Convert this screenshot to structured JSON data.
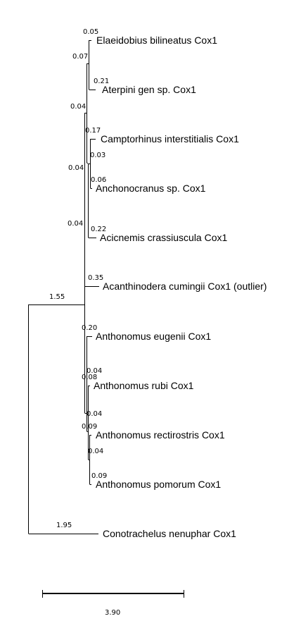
{
  "tree": {
    "taxa": [
      "Elaeidobius bilineatus Cox1",
      "Aterpini gen sp. Cox1",
      "Camptorhinus interstitialis Cox1",
      "Anchonocranus sp. Cox1",
      "Acicnemis crassiuscula Cox1",
      "Acanthinodera cumingii Cox1 (outlier)",
      "Anthonomus eugenii Cox1",
      "Anthonomus rubi Cox1",
      "Anthonomus rectirostris Cox1",
      "Anthonomus pomorum Cox1",
      "Conotrachelus nenuphar Cox1"
    ],
    "branch_lengths": [
      "0.05",
      "0.07",
      "0.21",
      "0.04",
      "0.17",
      "0.03",
      "0.04",
      "0.06",
      "0.04",
      "0.22",
      "0.35",
      "1.55",
      "0.20",
      "0.04",
      "0.08",
      "0.04",
      "0.09",
      "0.04",
      "0.09",
      "1.95"
    ],
    "scale_value": "3.90"
  }
}
